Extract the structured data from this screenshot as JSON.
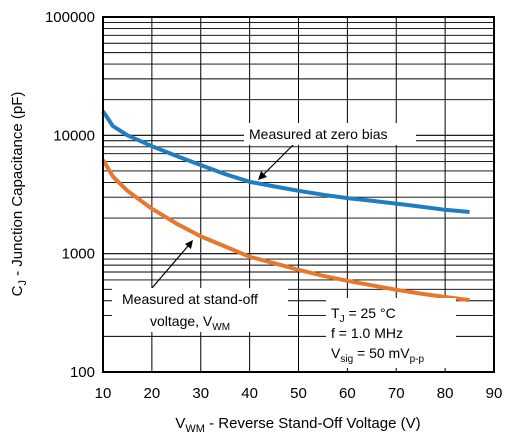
{
  "chart_data": {
    "type": "line",
    "title": "",
    "xlabel": {
      "main": "V",
      "sub": "WM",
      "rest": " - Reverse Stand-Off Voltage (V)"
    },
    "ylabel": {
      "main": "C",
      "sub": "J",
      "rest": " - Junction Capacitance (pF)"
    },
    "xlim": [
      10,
      90
    ],
    "ylim": [
      100,
      100000
    ],
    "yscale": "log",
    "grid": true,
    "x_ticks": [
      "10",
      "20",
      "30",
      "40",
      "50",
      "60",
      "70",
      "80",
      "90"
    ],
    "y_ticks": [
      "100",
      "1000",
      "10000",
      "100000"
    ],
    "colors": {
      "zero_bias": "#1f7ec1",
      "standoff": "#e8772e"
    },
    "series": [
      {
        "key": "zero_bias",
        "x": [
          10,
          12,
          15,
          20,
          25,
          30,
          35,
          40,
          45,
          50,
          55,
          60,
          65,
          70,
          75,
          80,
          85
        ],
        "y": [
          16000,
          12000,
          10000,
          8100,
          6700,
          5600,
          4700,
          4050,
          3700,
          3400,
          3150,
          2950,
          2800,
          2650,
          2500,
          2350,
          2250
        ]
      },
      {
        "key": "standoff",
        "x": [
          10,
          12,
          15,
          20,
          25,
          30,
          35,
          40,
          45,
          50,
          55,
          60,
          65,
          70,
          75,
          80,
          85
        ],
        "y": [
          6200,
          4500,
          3400,
          2400,
          1800,
          1400,
          1150,
          940,
          830,
          730,
          650,
          590,
          540,
          495,
          460,
          430,
          405
        ]
      }
    ],
    "annotations": {
      "zero_bias": "Measured at zero bias",
      "standoff_line1": "Measured at stand-off",
      "standoff_line2": {
        "main": "voltage, V",
        "sub": "WM"
      }
    },
    "conditions": {
      "tj": {
        "main": "T",
        "sub": "J",
        "rest": " = 25 °C"
      },
      "freq": "f = 1.0 MHz",
      "vsig": {
        "main": "V",
        "sub": "sig",
        "mid": " = 50 mV",
        "sub2": "p-p"
      }
    }
  }
}
